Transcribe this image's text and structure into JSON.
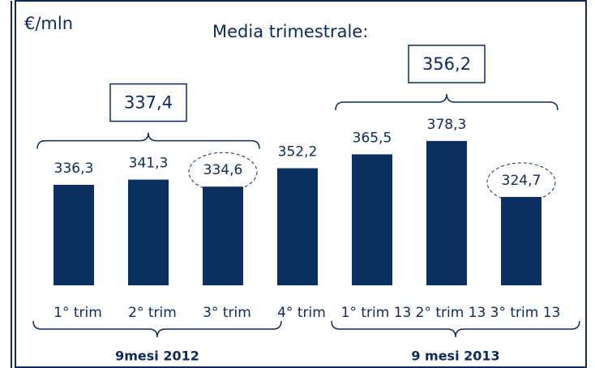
{
  "chart_data": {
    "type": "bar",
    "unit_label": "€/mln",
    "annotation": "Media trimestrale:",
    "categories": [
      "1° trim",
      "2° trim",
      "3° trim",
      "4° trim",
      "1° trim 13",
      "2° trim 13",
      "3° trim 13"
    ],
    "values": [
      336.3,
      341.3,
      334.6,
      352.2,
      365.5,
      378.3,
      324.7
    ],
    "value_labels": [
      "336,3",
      "341,3",
      "334,6",
      "352,2",
      "365,5",
      "378,3",
      "324,7"
    ],
    "color": "#0b2f5f",
    "ylim": [
      240,
      400
    ],
    "highlighted": [
      2,
      6
    ],
    "groups": [
      {
        "label": "9mesi 2012",
        "average": 337.4,
        "average_label": "337,4",
        "from": 0,
        "to": 2
      },
      {
        "label": "9 mesi 2013",
        "average": 356.2,
        "average_label": "356,2",
        "from": 4,
        "to": 6
      }
    ]
  }
}
